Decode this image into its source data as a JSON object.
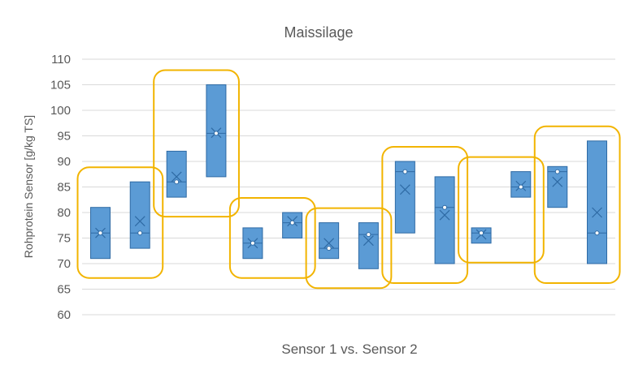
{
  "chart_data": {
    "type": "box",
    "title": "Maissilage",
    "xlabel": "Sensor 1 vs. Sensor 2",
    "ylabel": "Rohprotein Sensor [g/kg TS]",
    "ylim": [
      60,
      110
    ],
    "y_ticks": [
      60,
      65,
      70,
      75,
      80,
      85,
      90,
      95,
      100,
      105,
      110
    ],
    "grid": true,
    "colors": {
      "box": "#5b9bd5",
      "box_edge": "#2e6aa4",
      "highlight": "#f2b400",
      "grid": "#d9d9d9"
    },
    "groups": [
      {
        "boxes": [
          {
            "min": 71,
            "q1": 76,
            "median": 76,
            "q3": 81,
            "max": 81,
            "mean": 76
          },
          {
            "min": 73,
            "q1": 76,
            "median": 76,
            "q3": 86,
            "max": 86,
            "mean": 78.3
          }
        ]
      },
      {
        "boxes": [
          {
            "min": 83,
            "q1": 86,
            "median": 86,
            "q3": 92,
            "max": 92,
            "mean": 87
          },
          {
            "min": 87,
            "q1": 95.5,
            "median": 95.5,
            "q3": 105,
            "max": 105,
            "mean": 95.6
          }
        ]
      },
      {
        "boxes": [
          {
            "min": 71,
            "q1": 74,
            "median": 74,
            "q3": 77,
            "max": 77,
            "mean": 74
          },
          {
            "min": 75,
            "q1": 78,
            "median": 78,
            "q3": 80,
            "max": 80,
            "mean": 78.3
          }
        ]
      },
      {
        "boxes": [
          {
            "min": 71,
            "q1": 73,
            "median": 73,
            "q3": 78,
            "max": 78,
            "mean": 74
          },
          {
            "min": 69,
            "q1": 75.7,
            "median": 75.7,
            "q3": 78,
            "max": 78,
            "mean": 74.5
          }
        ]
      },
      {
        "boxes": [
          {
            "min": 76,
            "q1": 88,
            "median": 88,
            "q3": 90,
            "max": 90,
            "mean": 84.5
          },
          {
            "min": 70,
            "q1": 81,
            "median": 81,
            "q3": 87,
            "max": 87,
            "mean": 79.5
          }
        ]
      },
      {
        "boxes": [
          {
            "min": 74,
            "q1": 76,
            "median": 76,
            "q3": 77,
            "max": 77,
            "mean": 75.7
          },
          {
            "min": 83,
            "q1": 85,
            "median": 85,
            "q3": 88,
            "max": 88,
            "mean": 85.2
          }
        ]
      },
      {
        "boxes": [
          {
            "min": 81,
            "q1": 88,
            "median": 88,
            "q3": 89,
            "max": 89,
            "mean": 86
          },
          {
            "min": 70,
            "q1": 76,
            "median": 76,
            "q3": 94,
            "max": 94,
            "mean": 80
          }
        ]
      }
    ]
  }
}
